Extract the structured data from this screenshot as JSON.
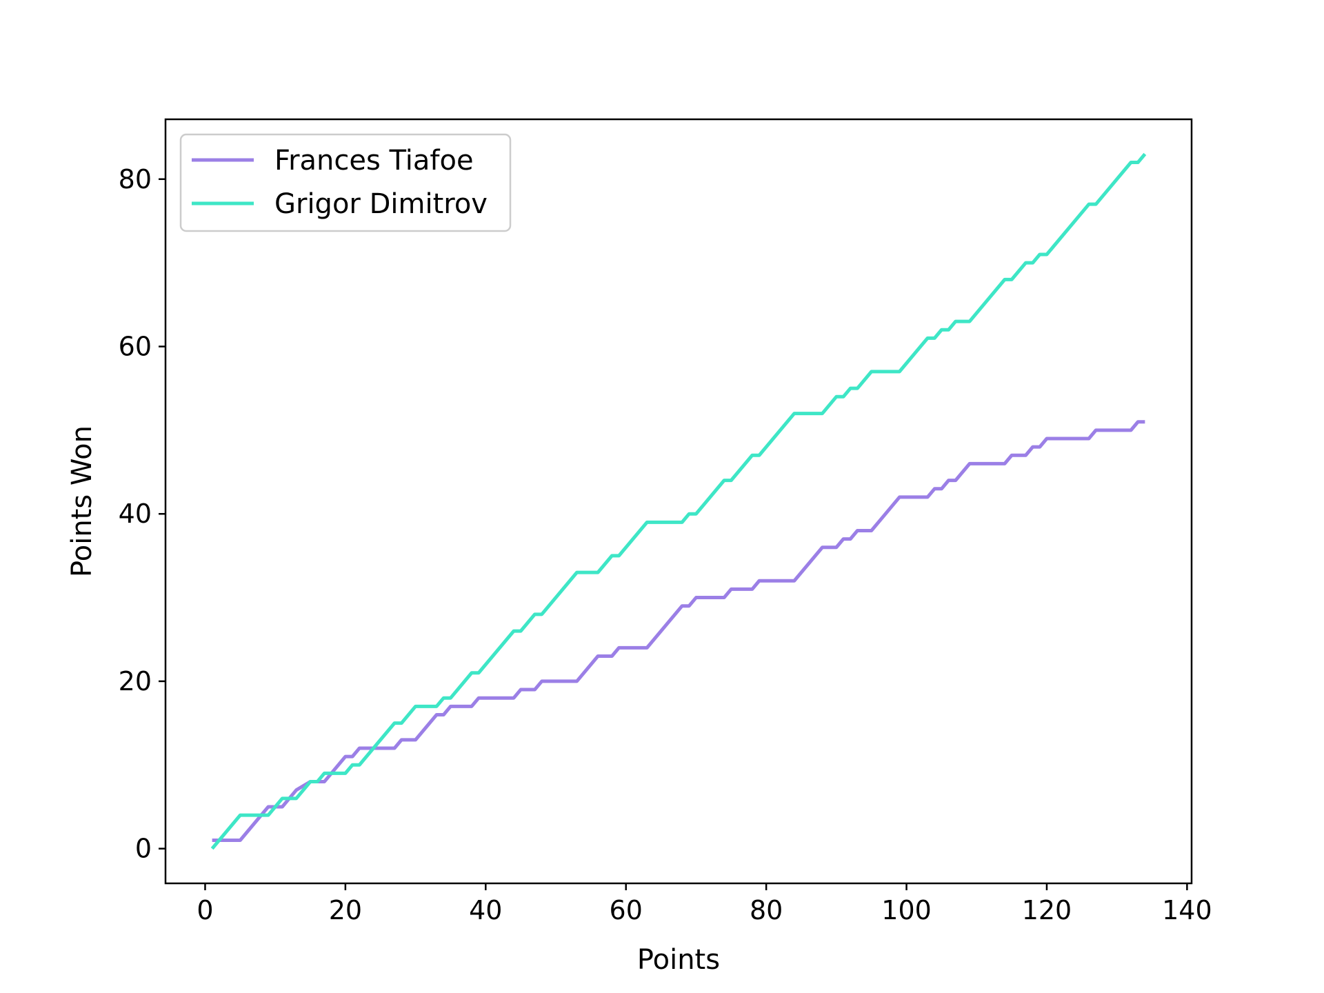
{
  "chart_data": {
    "type": "line",
    "title": "",
    "xlabel": "Points",
    "ylabel": "Points Won",
    "xlim": [
      -5.65,
      140.65
    ],
    "ylim": [
      -4.15,
      87.15
    ],
    "xticks": [
      0,
      20,
      40,
      60,
      80,
      100,
      120,
      140
    ],
    "yticks": [
      0,
      20,
      40,
      60,
      80
    ],
    "grid": false,
    "legend_position": "top-left",
    "series": [
      {
        "name": "Frances Tiafoe",
        "color": "#9b7fe6",
        "points": [
          [
            1,
            1
          ],
          [
            5,
            1
          ],
          [
            9,
            5
          ],
          [
            11,
            5
          ],
          [
            13,
            7
          ],
          [
            15,
            8
          ],
          [
            17,
            8
          ],
          [
            20,
            11
          ],
          [
            21,
            11
          ],
          [
            22,
            12
          ],
          [
            27,
            12
          ],
          [
            28,
            13
          ],
          [
            30,
            13
          ],
          [
            33,
            16
          ],
          [
            34,
            16
          ],
          [
            35,
            17
          ],
          [
            38,
            17
          ],
          [
            39,
            18
          ],
          [
            44,
            18
          ],
          [
            45,
            19
          ],
          [
            47,
            19
          ],
          [
            48,
            20
          ],
          [
            53,
            20
          ],
          [
            56,
            23
          ],
          [
            58,
            23
          ],
          [
            59,
            24
          ],
          [
            63,
            24
          ],
          [
            68,
            29
          ],
          [
            69,
            29
          ],
          [
            70,
            30
          ],
          [
            74,
            30
          ],
          [
            75,
            31
          ],
          [
            78,
            31
          ],
          [
            79,
            32
          ],
          [
            84,
            32
          ],
          [
            88,
            36
          ],
          [
            90,
            36
          ],
          [
            91,
            37
          ],
          [
            92,
            37
          ],
          [
            93,
            38
          ],
          [
            95,
            38
          ],
          [
            99,
            42
          ],
          [
            103,
            42
          ],
          [
            104,
            43
          ],
          [
            105,
            43
          ],
          [
            106,
            44
          ],
          [
            107,
            44
          ],
          [
            109,
            46
          ],
          [
            114,
            46
          ],
          [
            115,
            47
          ],
          [
            117,
            47
          ],
          [
            118,
            48
          ],
          [
            119,
            48
          ],
          [
            120,
            49
          ],
          [
            126,
            49
          ],
          [
            127,
            50
          ],
          [
            132,
            50
          ],
          [
            133,
            51
          ],
          [
            134,
            51
          ]
        ]
      },
      {
        "name": "Grigor Dimitrov",
        "color": "#3ee6c6",
        "points": [
          [
            1,
            0
          ],
          [
            5,
            4
          ],
          [
            9,
            4
          ],
          [
            11,
            6
          ],
          [
            13,
            6
          ],
          [
            15,
            8
          ],
          [
            16,
            8
          ],
          [
            17,
            9
          ],
          [
            20,
            9
          ],
          [
            21,
            10
          ],
          [
            22,
            10
          ],
          [
            27,
            15
          ],
          [
            28,
            15
          ],
          [
            30,
            17
          ],
          [
            33,
            17
          ],
          [
            34,
            18
          ],
          [
            35,
            18
          ],
          [
            38,
            21
          ],
          [
            39,
            21
          ],
          [
            44,
            26
          ],
          [
            45,
            26
          ],
          [
            47,
            28
          ],
          [
            48,
            28
          ],
          [
            53,
            33
          ],
          [
            56,
            33
          ],
          [
            58,
            35
          ],
          [
            59,
            35
          ],
          [
            63,
            39
          ],
          [
            68,
            39
          ],
          [
            69,
            40
          ],
          [
            70,
            40
          ],
          [
            74,
            44
          ],
          [
            75,
            44
          ],
          [
            78,
            47
          ],
          [
            79,
            47
          ],
          [
            84,
            52
          ],
          [
            88,
            52
          ],
          [
            90,
            54
          ],
          [
            91,
            54
          ],
          [
            92,
            55
          ],
          [
            93,
            55
          ],
          [
            95,
            57
          ],
          [
            99,
            57
          ],
          [
            103,
            61
          ],
          [
            104,
            61
          ],
          [
            105,
            62
          ],
          [
            106,
            62
          ],
          [
            107,
            63
          ],
          [
            109,
            63
          ],
          [
            114,
            68
          ],
          [
            115,
            68
          ],
          [
            117,
            70
          ],
          [
            118,
            70
          ],
          [
            119,
            71
          ],
          [
            120,
            71
          ],
          [
            126,
            77
          ],
          [
            127,
            77
          ],
          [
            132,
            82
          ],
          [
            133,
            82
          ],
          [
            134,
            83
          ]
        ]
      }
    ]
  }
}
